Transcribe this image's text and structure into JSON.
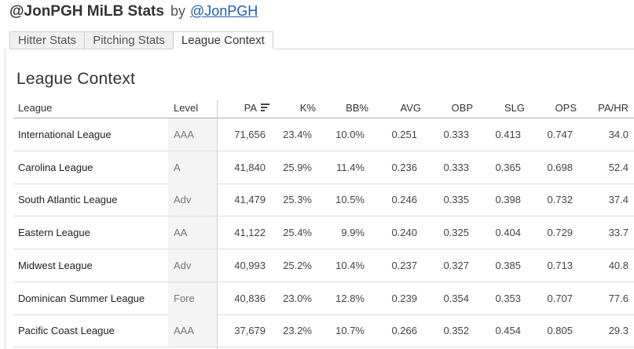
{
  "header": {
    "title": "@JonPGH MiLB Stats",
    "by": "by",
    "author": "@JonPGH"
  },
  "tabs": [
    {
      "label": "Hitter Stats",
      "active": false
    },
    {
      "label": "Pitching Stats",
      "active": false
    },
    {
      "label": "League Context",
      "active": true
    }
  ],
  "panel": {
    "title": "League Context"
  },
  "table": {
    "columns": [
      "League",
      "Level",
      "PA",
      "K%",
      "BB%",
      "AVG",
      "OBP",
      "SLG",
      "OPS",
      "PA/HR"
    ],
    "sort_icon": "sort-descending-icon",
    "rows": [
      [
        "International League",
        "AAA",
        "71,656",
        "23.4%",
        "10.0%",
        "0.251",
        "0.333",
        "0.413",
        "0.747",
        "34.0"
      ],
      [
        "Carolina League",
        "A",
        "41,840",
        "25.9%",
        "11.4%",
        "0.236",
        "0.333",
        "0.365",
        "0.698",
        "52.4"
      ],
      [
        "South Atlantic League",
        "Adv",
        "41,479",
        "25.3%",
        "10.5%",
        "0.246",
        "0.335",
        "0.398",
        "0.732",
        "37.4"
      ],
      [
        "Eastern League",
        "AA",
        "41,122",
        "25.4%",
        "9.9%",
        "0.240",
        "0.325",
        "0.404",
        "0.729",
        "33.7"
      ],
      [
        "Midwest League",
        "Adv",
        "40,993",
        "25.2%",
        "10.4%",
        "0.237",
        "0.327",
        "0.385",
        "0.713",
        "40.8"
      ],
      [
        "Dominican Summer League",
        "Fore",
        "40,836",
        "23.0%",
        "12.8%",
        "0.239",
        "0.354",
        "0.353",
        "0.707",
        "77.6"
      ],
      [
        "Pacific Coast League",
        "AAA",
        "37,679",
        "23.2%",
        "10.7%",
        "0.266",
        "0.352",
        "0.454",
        "0.805",
        "29.3"
      ]
    ]
  }
}
